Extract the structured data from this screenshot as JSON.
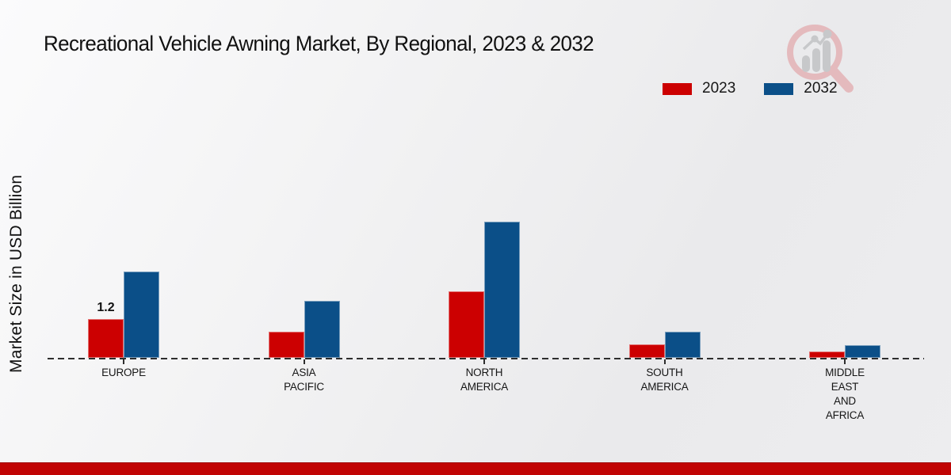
{
  "header": {
    "title": "Recreational Vehicle Awning Market, By Regional, 2023 & 2032"
  },
  "legend": {
    "items": [
      {
        "label": "2023",
        "color": "#cc0001"
      },
      {
        "label": "2032",
        "color": "#0b4f88"
      }
    ]
  },
  "brand_logo": {
    "name": "magnifier-bar-chart-logo",
    "ring_color": "#e4b7ba",
    "bar_color": "#c5c6c8"
  },
  "footer": {
    "color": "#c10404"
  },
  "chart_data": {
    "type": "bar",
    "title": "Recreational Vehicle Awning Market, By Regional, 2023 & 2032",
    "xlabel": "",
    "ylabel": "Market Size in USD Billion",
    "categories": [
      "EUROPE",
      "ASIA\nPACIFIC",
      "NORTH\nAMERICA",
      "SOUTH\nAMERICA",
      "MIDDLE\nEAST\nAND\nAFRICA"
    ],
    "series": [
      {
        "name": "2023",
        "color": "#cc0001",
        "values": [
          1.2,
          0.8,
          2.05,
          0.42,
          0.2
        ]
      },
      {
        "name": "2032",
        "color": "#0b4f88",
        "values": [
          2.65,
          1.75,
          4.2,
          0.8,
          0.4
        ]
      }
    ],
    "data_labels": [
      {
        "series": 0,
        "category": 0,
        "text": "1.2"
      }
    ],
    "ylim": [
      0,
      4.5
    ],
    "grid": false,
    "legend_position": "top-right",
    "axis_style": "dashed-baseline-only",
    "axis_color": "#2e2e2e"
  }
}
